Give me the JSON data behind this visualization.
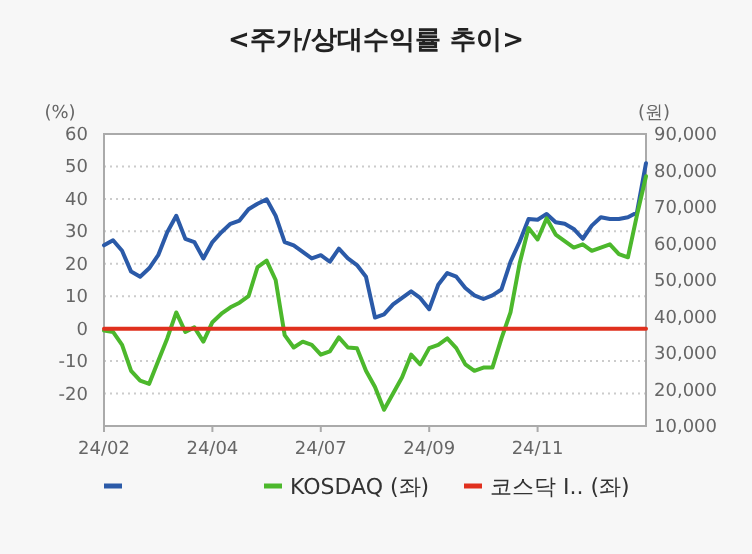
{
  "chart_data": {
    "type": "line",
    "title": "<주가/상대수익률 추이>",
    "ylabel": "(%)",
    "y2label": "(원)",
    "categories": [
      "24/02",
      null,
      null,
      null,
      null,
      null,
      null,
      null,
      null,
      null,
      null,
      null,
      "24/04",
      null,
      null,
      null,
      null,
      null,
      null,
      null,
      null,
      null,
      null,
      null,
      "24/07",
      null,
      null,
      null,
      null,
      null,
      null,
      null,
      null,
      null,
      null,
      null,
      "24/09",
      null,
      null,
      null,
      null,
      null,
      null,
      null,
      null,
      null,
      null,
      null,
      "24/11",
      null,
      null,
      null,
      null,
      null,
      null,
      null,
      null,
      null,
      null,
      null,
      null
    ],
    "series": [
      {
        "color": "#2b5aa8",
        "axis": "y2",
        "values": [
          59500,
          60900,
          58000,
          52300,
          50900,
          53200,
          56800,
          63100,
          67600,
          61300,
          60400,
          55900,
          60400,
          63100,
          65400,
          66300,
          69400,
          70900,
          72100,
          67600,
          60400,
          59500,
          57700,
          55900,
          56800,
          55000,
          58600,
          55900,
          54100,
          50900,
          39700,
          40600,
          43300,
          45100,
          46900,
          45100,
          42000,
          48700,
          51900,
          50900,
          47800,
          45800,
          44800,
          45800,
          47400,
          55000,
          60400,
          66700,
          66500,
          68100,
          65800,
          65400,
          64000,
          61300,
          64900,
          67200,
          66700,
          66700,
          67200,
          68500,
          82000
        ]
      },
      {
        "name": "KOSDAQ (좌)",
        "color": "#4cb82c",
        "axis": "y",
        "values": [
          -0.6,
          -1,
          -5,
          -13,
          -16,
          -17,
          -10,
          -3,
          5,
          -1,
          0.4,
          -4,
          2,
          4.6,
          6.6,
          8,
          10,
          19,
          21,
          15,
          -2,
          -5.8,
          -4,
          -5,
          -8,
          -7,
          -2.7,
          -5.8,
          -6,
          -13,
          -18,
          -25,
          -20,
          -15,
          -8,
          -11,
          -6,
          -5,
          -3,
          -6,
          -11,
          -13,
          -12,
          -12,
          -3,
          5,
          20,
          31,
          27.5,
          34,
          29,
          27,
          25,
          26,
          24,
          25,
          26,
          23,
          22,
          35,
          47
        ]
      },
      {
        "name": "코스닥 I.. (좌)",
        "color": "#e0301e",
        "axis": "y",
        "values": [
          0,
          0,
          0,
          0,
          0,
          0,
          0,
          0,
          0,
          0,
          0,
          0,
          0,
          0,
          0,
          0,
          0,
          0,
          0,
          0,
          0,
          0,
          0,
          0,
          0,
          0,
          0,
          0,
          0,
          0,
          0,
          0,
          0,
          0,
          0,
          0,
          0,
          0,
          0,
          0,
          0,
          0,
          0,
          0,
          0,
          0,
          0,
          0,
          0,
          0,
          0,
          0,
          0,
          0,
          0,
          0,
          0,
          0,
          0,
          0,
          0
        ]
      }
    ],
    "ylim": [
      -30,
      60
    ],
    "yticks": [
      -20,
      -10,
      0,
      10,
      20,
      30,
      40,
      50,
      60
    ],
    "y2lim": [
      10000,
      90000
    ],
    "y2ticks": [
      {
        "value": 10000,
        "label": "10,000"
      },
      {
        "value": 20000,
        "label": "20,000"
      },
      {
        "value": 30000,
        "label": "30,000"
      },
      {
        "value": 40000,
        "label": "40,000"
      },
      {
        "value": 50000,
        "label": "50,000"
      },
      {
        "value": 60000,
        "label": "60,000"
      },
      {
        "value": 70000,
        "label": "70,000"
      },
      {
        "value": 80000,
        "label": "80,000"
      },
      {
        "value": 90000,
        "label": "90,000"
      }
    ],
    "grid": "y",
    "legend": "bottom",
    "marker": "none",
    "line_style": "solid"
  }
}
